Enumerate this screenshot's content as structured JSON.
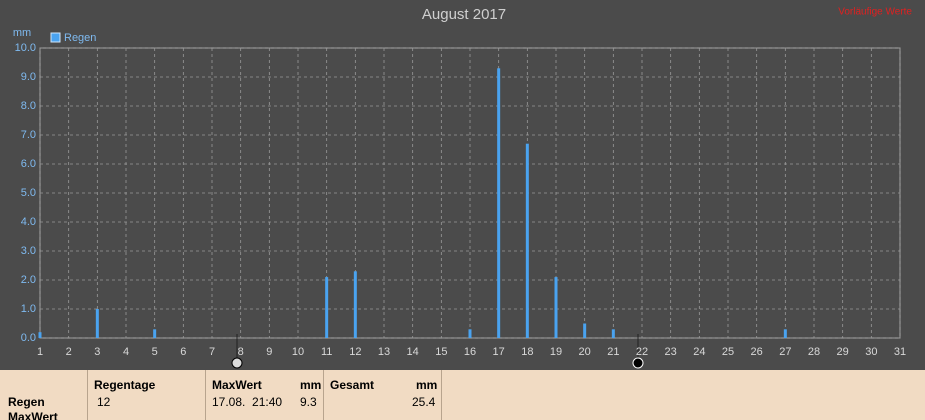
{
  "chart_data": {
    "type": "bar",
    "title": "August 2017",
    "note": "Vorläufige Werte",
    "y_unit": "mm",
    "series": [
      {
        "name": "Regen",
        "color": "#4aa3f0",
        "x": [
          1,
          3,
          5,
          11,
          12,
          16,
          17,
          18,
          19,
          20,
          21,
          27
        ],
        "values": [
          0.2,
          1.0,
          0.3,
          2.1,
          2.3,
          0.3,
          9.3,
          6.7,
          2.1,
          0.5,
          0.3,
          0.3
        ]
      }
    ],
    "xlim": [
      1,
      31
    ],
    "xticks": [
      1,
      2,
      3,
      4,
      5,
      6,
      7,
      8,
      9,
      10,
      11,
      12,
      13,
      14,
      15,
      16,
      17,
      18,
      19,
      20,
      21,
      22,
      23,
      24,
      25,
      26,
      27,
      28,
      29,
      30,
      31
    ],
    "ylim": [
      0,
      10
    ],
    "yticks": [
      {
        "value": 0,
        "label": "0.0"
      },
      {
        "value": 1,
        "label": "1.0"
      },
      {
        "value": 2,
        "label": "2.0"
      },
      {
        "value": 3,
        "label": "3.0"
      },
      {
        "value": 4,
        "label": "4.0"
      },
      {
        "value": 5,
        "label": "5.0"
      },
      {
        "value": 6,
        "label": "6.0"
      },
      {
        "value": 7,
        "label": "7.0"
      },
      {
        "value": 8,
        "label": "8.0"
      },
      {
        "value": 9,
        "label": "9.0"
      },
      {
        "value": 10,
        "label": "10.0"
      }
    ],
    "grid": true,
    "legend": "top-left"
  },
  "table": {
    "row_labels": [
      "Regen",
      "MaxWert"
    ],
    "regentage": {
      "header": "Regentage",
      "value": "12"
    },
    "maxwert": {
      "header": "MaxWert",
      "unit": "mm",
      "time": "17.08.  21:40",
      "value": "9.3"
    },
    "gesamt": {
      "header": "Gesamt",
      "unit": "mm",
      "value": "25.4"
    }
  }
}
